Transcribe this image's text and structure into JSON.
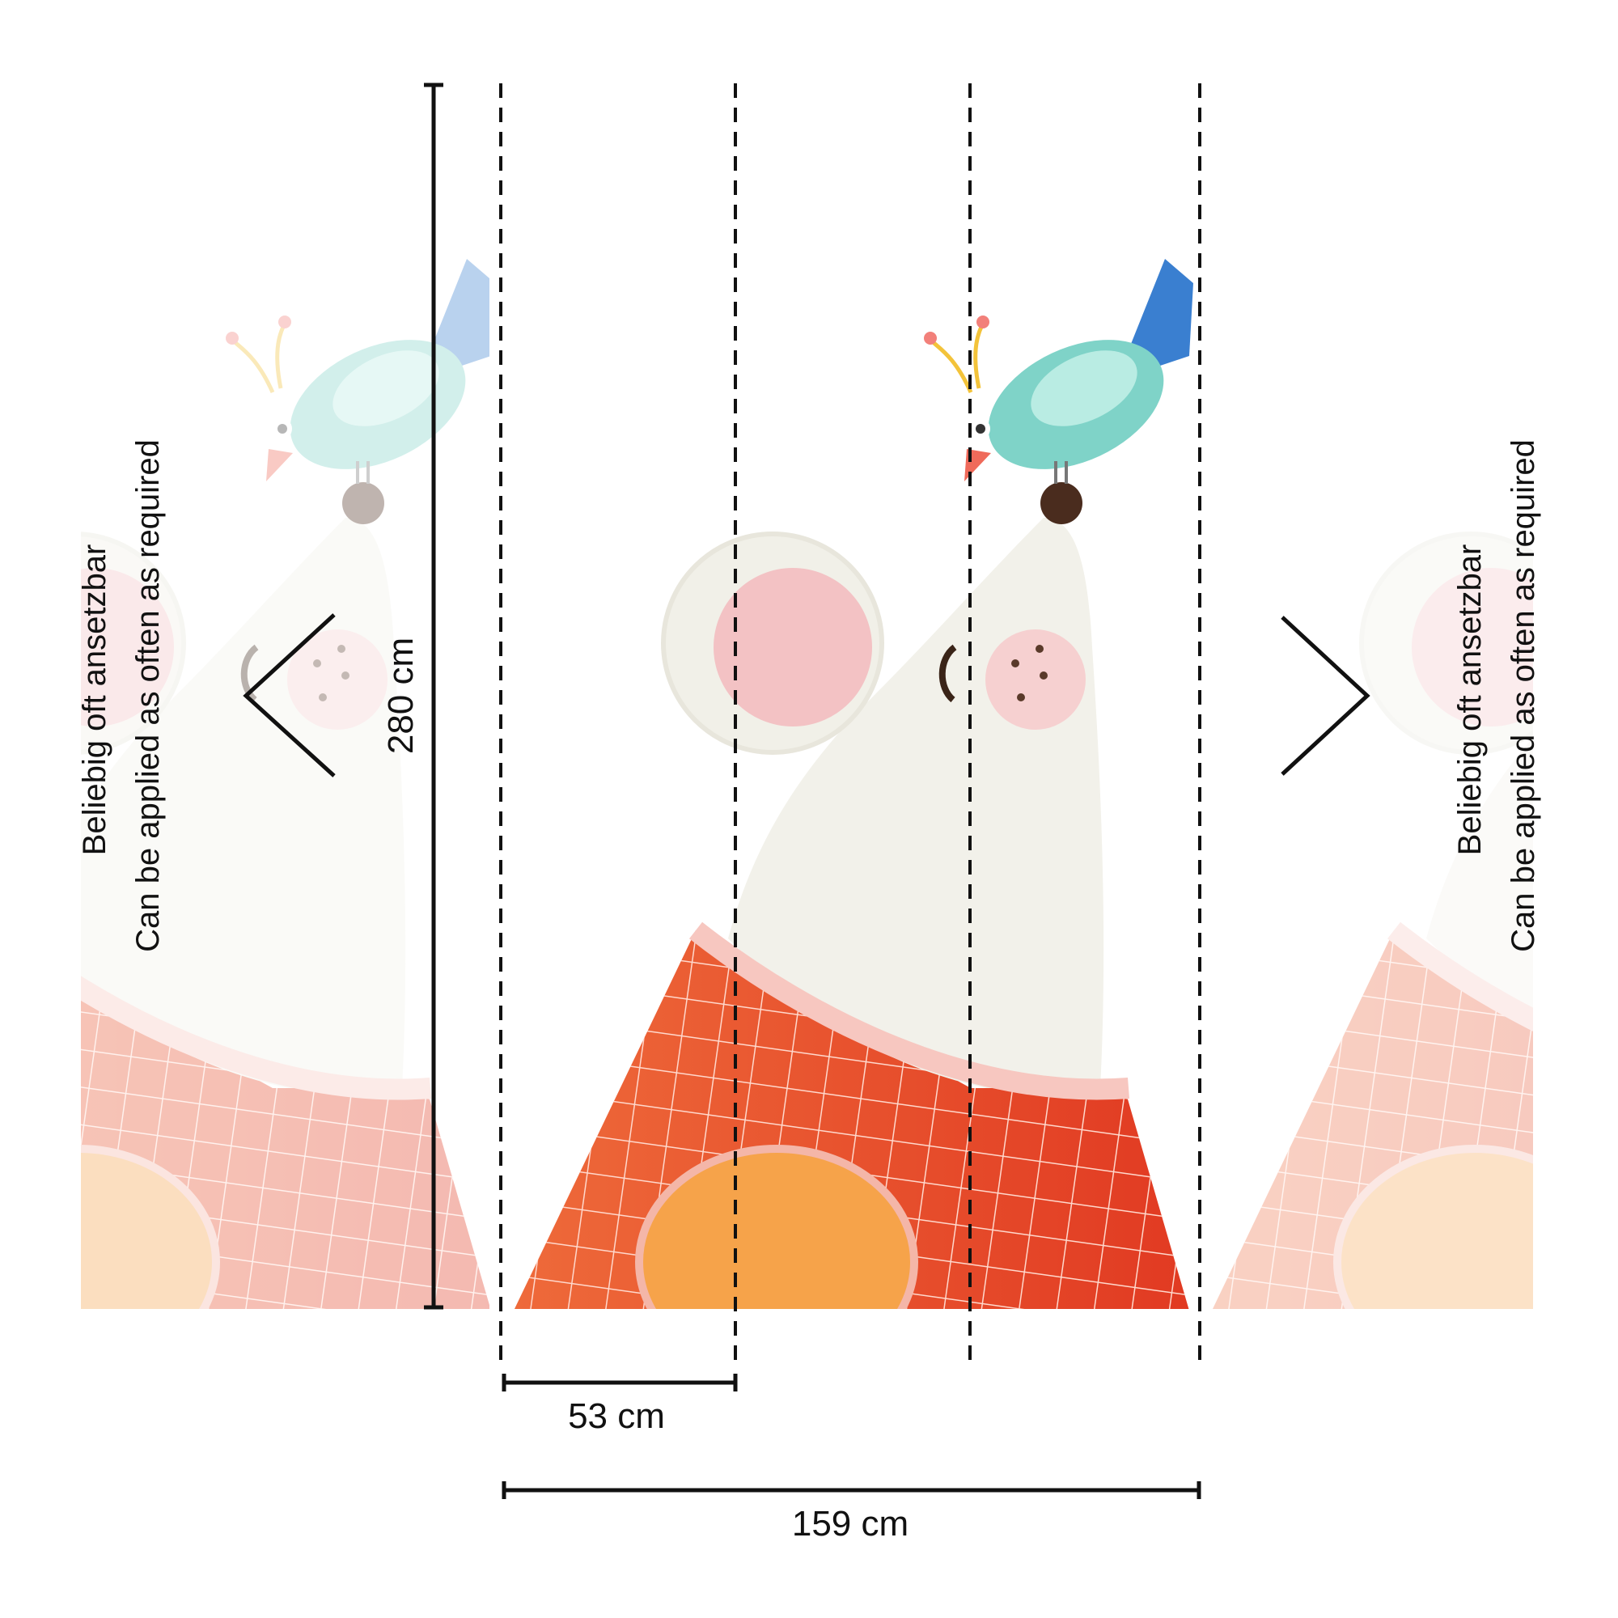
{
  "dimensions": {
    "height_label": "280 cm",
    "panel_width_label": "53 cm",
    "total_width_label": "159 cm"
  },
  "repeat_note": {
    "german": "Beliebig oft ansetzbar",
    "english": "Can be applied as often as required"
  },
  "icons": {
    "left_repeat": "chevron-left-icon",
    "right_repeat": "chevron-right-icon"
  },
  "colors": {
    "sweater": "#e4472a",
    "sweater_light": "#f07a50",
    "mouse": "#f2f1ea",
    "ear_inner": "#f3c2c4",
    "bird": "#7fd3c8",
    "belly": "#f2a030",
    "lines": "#111111"
  }
}
